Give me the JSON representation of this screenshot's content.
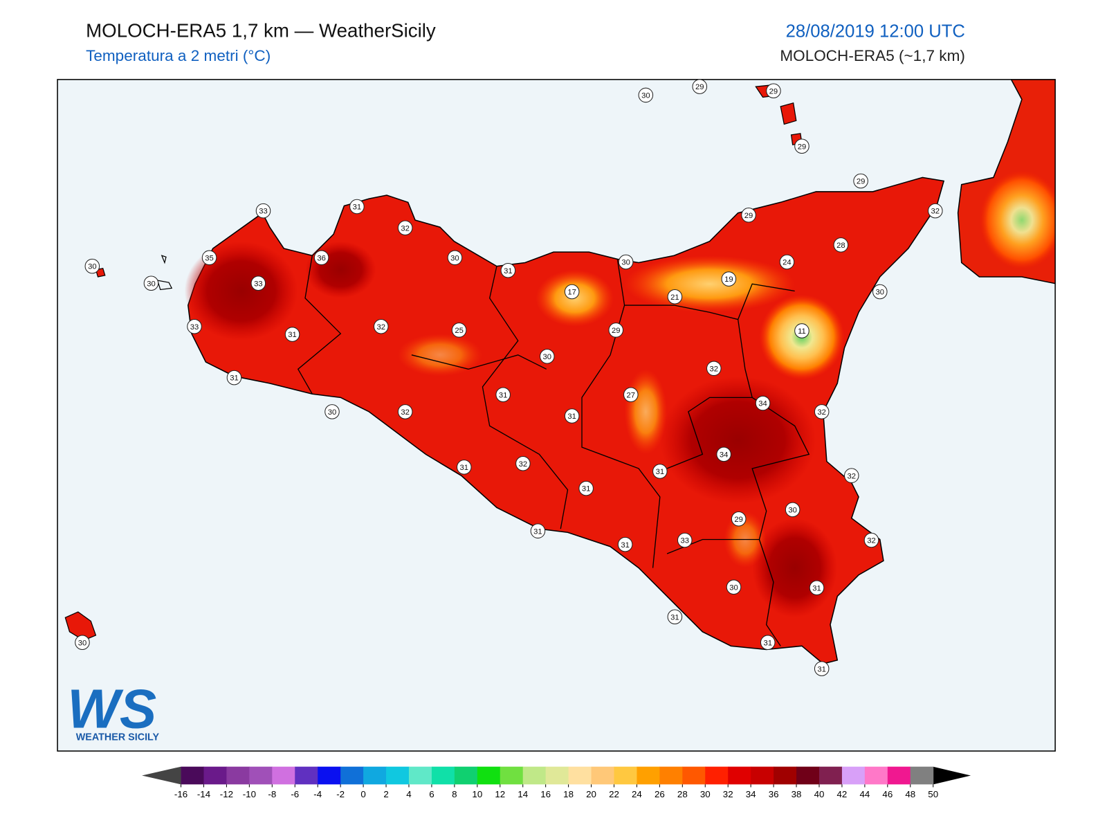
{
  "header": {
    "title": "MOLOCH-ERA5 1,7 km — WeatherSicily",
    "subtitle": "Temperatura a 2 metri (°C)",
    "datetime": "28/08/2019 12:00 UTC",
    "model": "MOLOCH-ERA5 (~1,7 km)"
  },
  "stations": [
    30,
    29,
    29,
    29,
    29,
    32,
    29,
    28,
    24,
    19,
    21,
    30,
    11,
    30,
    29,
    17,
    31,
    30,
    32,
    31,
    33,
    36,
    35,
    33,
    30,
    30,
    33,
    31,
    32,
    25,
    30,
    31,
    30,
    32,
    31,
    31,
    27,
    32,
    34,
    32,
    34,
    31,
    32,
    31,
    31,
    32,
    30,
    29,
    33,
    31,
    31,
    32,
    30,
    31,
    31,
    31,
    31,
    30
  ],
  "colorbar": {
    "ticks": [
      -16,
      -14,
      -12,
      -10,
      -8,
      -6,
      -4,
      -2,
      0,
      2,
      4,
      6,
      8,
      10,
      12,
      14,
      16,
      18,
      20,
      22,
      24,
      26,
      28,
      30,
      32,
      34,
      36,
      38,
      40,
      42,
      44,
      46,
      48,
      50
    ],
    "under_color": "#444444",
    "over_color": "#000000",
    "colors": [
      "#4a0a5a",
      "#6a1a8a",
      "#8a3aa0",
      "#a050b8",
      "#d070e0",
      "#6030c0",
      "#0a10f0",
      "#1070d8",
      "#10a8e0",
      "#10c8e0",
      "#60e8c8",
      "#10e0a8",
      "#10d070",
      "#10e010",
      "#70e040",
      "#c0e888",
      "#e0e898",
      "#ffe0a0",
      "#ffc878",
      "#ffc840",
      "#ffa000",
      "#ff8000",
      "#ff5800",
      "#ff2000",
      "#e00000",
      "#c80000",
      "#a00000",
      "#700018",
      "#802050",
      "#d8a0f8",
      "#ff78c8",
      "#f01890",
      "#808080",
      "#404040"
    ]
  },
  "logo": {
    "mark": "WS",
    "text": "WEATHER SICILY"
  }
}
